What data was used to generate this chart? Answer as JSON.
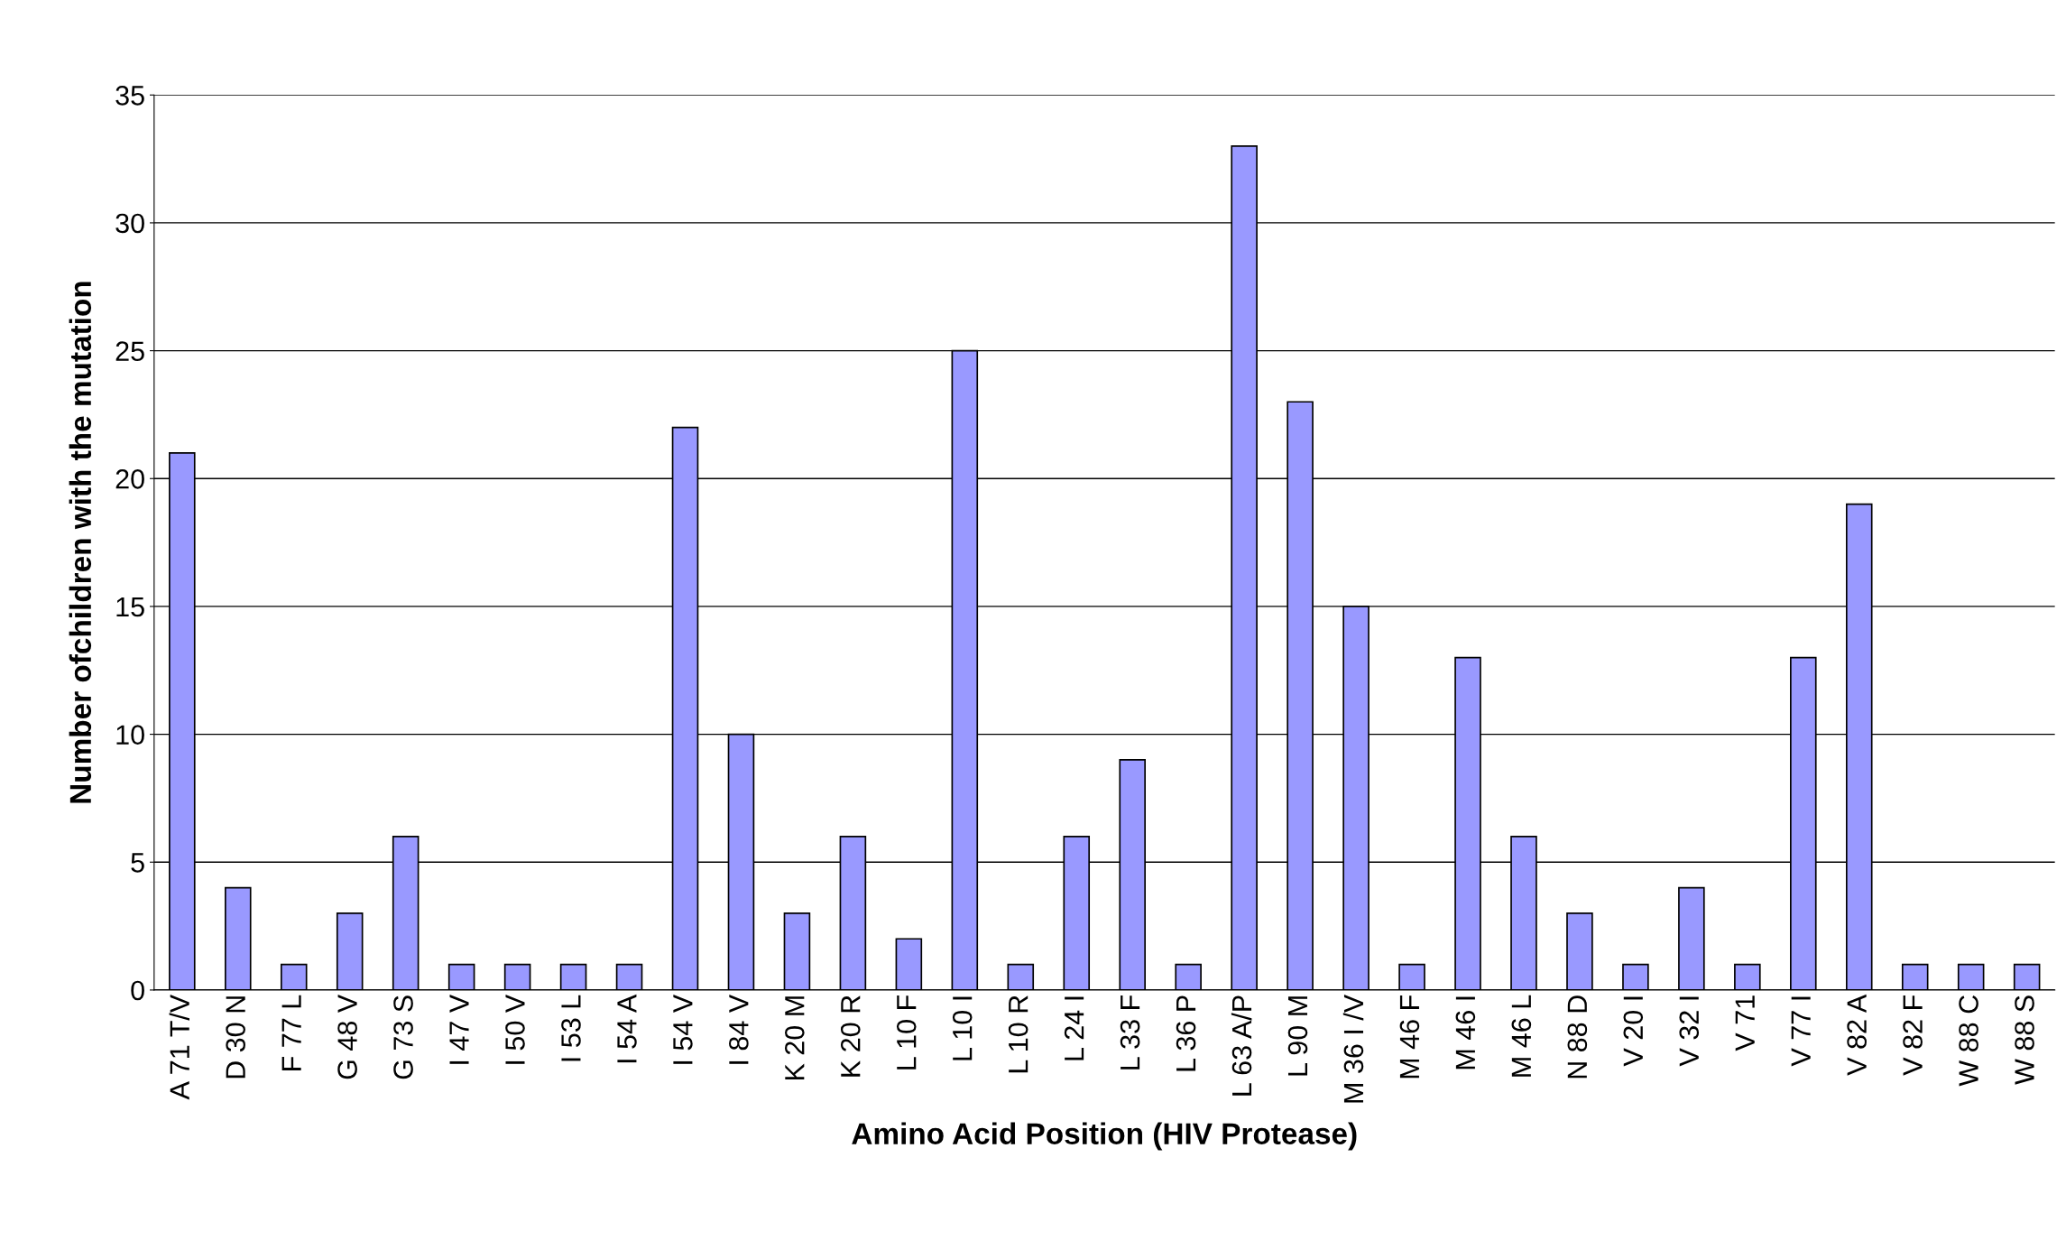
{
  "chart_data": {
    "type": "bar",
    "xlabel": "Amino Acid Position (HIV Protease)",
    "ylabel": "Number ofchildren with the mutation",
    "categories": [
      "A 71 T/V",
      "D 30 N",
      "F 77 L",
      "G 48 V",
      "G 73 S",
      "I 47 V",
      "I 50 V",
      "I 53 L",
      "I 54 A",
      "I 54 V",
      "I 84 V",
      "K 20 M",
      "K 20 R",
      "L 10 F",
      "L 10 I",
      "L 10 R",
      "L 24 I",
      "L 33 F",
      "L 36 P",
      "L 63 A/P",
      "L 90 M",
      "M 36 I /V",
      "M 46 F",
      "M 46 I",
      "M 46 L",
      "N 88 D",
      "V 20 I",
      "V 32 I",
      "V 71",
      "V 77 I",
      "V 82 A",
      "V 82 F",
      "W 88 C",
      "W 88 S"
    ],
    "values": [
      21,
      4,
      1,
      3,
      6,
      1,
      1,
      1,
      1,
      22,
      10,
      3,
      6,
      2,
      25,
      1,
      6,
      9,
      1,
      33,
      23,
      15,
      1,
      13,
      6,
      3,
      1,
      4,
      1,
      13,
      19,
      1,
      1,
      1
    ],
    "color": "#9999ff",
    "ylim": [
      0,
      35
    ],
    "yticks": [
      0,
      5,
      10,
      15,
      20,
      25,
      30,
      35
    ],
    "grid": "y"
  }
}
